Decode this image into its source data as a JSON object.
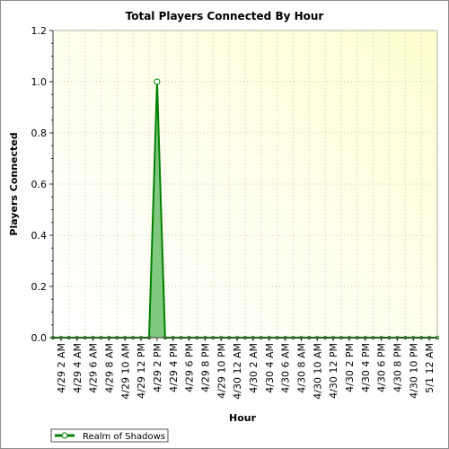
{
  "chart_data": {
    "type": "area",
    "title": "Total Players Connected By Hour",
    "xlabel": "Hour",
    "ylabel": "Players Connected",
    "ylim": [
      0,
      1.2
    ],
    "yticks": [
      "0.0",
      "0.2",
      "0.4",
      "0.6",
      "0.8",
      "1.0",
      "1.2"
    ],
    "x_tick_labels": [
      "4/29 2 AM",
      "4/29 4 AM",
      "4/29 6 AM",
      "4/29 8 AM",
      "4/29 10 AM",
      "4/29 12 PM",
      "4/29 2 PM",
      "4/29 4 PM",
      "4/29 6 PM",
      "4/29 8 PM",
      "4/29 10 PM",
      "4/30 12 AM",
      "4/30 2 AM",
      "4/30 4 AM",
      "4/30 6 AM",
      "4/30 8 AM",
      "4/30 10 AM",
      "4/30 12 PM",
      "4/30 2 PM",
      "4/30 4 PM",
      "4/30 6 PM",
      "4/30 8 PM",
      "4/30 10 PM",
      "5/1 12 AM"
    ],
    "grid": true,
    "legend_position": "bottom-left",
    "series": [
      {
        "name": "Realm of Shadows",
        "color": "#008000",
        "fill": "#6abf6a",
        "x": [
          "4/29 1 AM",
          "4/29 2 AM",
          "4/29 3 AM",
          "4/29 4 AM",
          "4/29 5 AM",
          "4/29 6 AM",
          "4/29 7 AM",
          "4/29 8 AM",
          "4/29 9 AM",
          "4/29 10 AM",
          "4/29 11 AM",
          "4/29 12 PM",
          "4/29 1 PM",
          "4/29 2 PM",
          "4/29 3 PM",
          "4/29 4 PM",
          "4/29 5 PM",
          "4/29 6 PM",
          "4/29 7 PM",
          "4/29 8 PM",
          "4/29 9 PM",
          "4/29 10 PM",
          "4/29 11 PM",
          "4/30 12 AM",
          "4/30 1 AM",
          "4/30 2 AM",
          "4/30 3 AM",
          "4/30 4 AM",
          "4/30 5 AM",
          "4/30 6 AM",
          "4/30 7 AM",
          "4/30 8 AM",
          "4/30 9 AM",
          "4/30 10 AM",
          "4/30 11 AM",
          "4/30 12 PM",
          "4/30 1 PM",
          "4/30 2 PM",
          "4/30 3 PM",
          "4/30 4 PM",
          "4/30 5 PM",
          "4/30 6 PM",
          "4/30 7 PM",
          "4/30 8 PM",
          "4/30 9 PM",
          "4/30 10 PM",
          "4/30 11 PM",
          "5/1 12 AM",
          "5/1 1 AM"
        ],
        "values": [
          0,
          0,
          0,
          0,
          0,
          0,
          0,
          0,
          0,
          0,
          0,
          0,
          0,
          1,
          0,
          0,
          0,
          0,
          0,
          0,
          0,
          0,
          0,
          0,
          0,
          0,
          0,
          0,
          0,
          0,
          0,
          0,
          0,
          0,
          0,
          0,
          0,
          0,
          0,
          0,
          0,
          0,
          0,
          0,
          0,
          0,
          0,
          0,
          0
        ]
      }
    ]
  }
}
